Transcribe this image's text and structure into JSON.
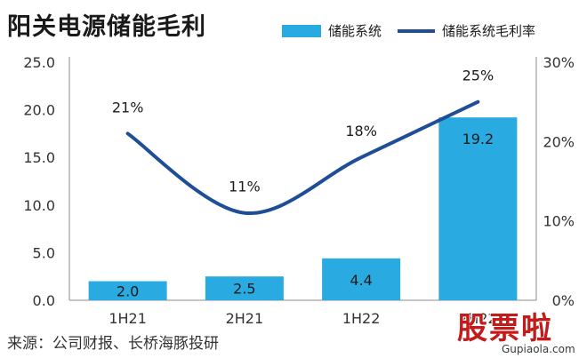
{
  "chart_data": {
    "type": "bar+line",
    "title": "阳关电源储能毛利",
    "categories": [
      "1H21",
      "2H21",
      "1H22",
      "2H22"
    ],
    "series": [
      {
        "name": "储能系统",
        "type": "bar",
        "axis": "left",
        "values": [
          2.0,
          2.5,
          4.4,
          19.2
        ],
        "labels": [
          "2.0",
          "2.5",
          "4.4",
          "19.2"
        ],
        "color": "#29abe2"
      },
      {
        "name": "储能系统毛利率",
        "type": "line",
        "axis": "right",
        "values": [
          21,
          11,
          18,
          25
        ],
        "labels": [
          "21%",
          "11%",
          "18%",
          "25%"
        ],
        "color": "#1f4e96"
      }
    ],
    "y_left": {
      "min": 0,
      "max": 25,
      "ticks": [
        "0.0",
        "5.0",
        "10.0",
        "15.0",
        "20.0",
        "25.0"
      ]
    },
    "y_right": {
      "min": 0,
      "max": 30,
      "ticks": [
        "0%",
        "10%",
        "20%",
        "30%"
      ]
    },
    "grid": false,
    "legend_position": "top-right",
    "source": "来源：公司财报、长桥海豚投研"
  },
  "watermark": {
    "text": "股票啦",
    "url": "Gupiaola.com"
  }
}
